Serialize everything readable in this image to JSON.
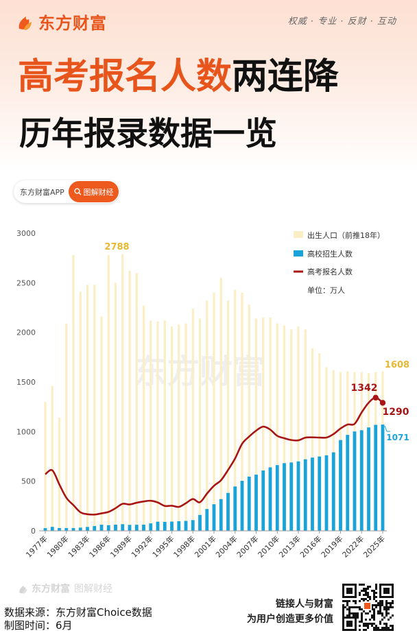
{
  "header": {
    "brand": "东方财富",
    "slogan": "权威 · 专业 · 反财 · 互动",
    "title_highlight": "高考报名人数",
    "title_rest": "两连降",
    "subtitle": "历年报录数据一览",
    "app_label": "东方财富APP",
    "app_button": "图解财经"
  },
  "watermark": "东方财富",
  "footer": {
    "brand": "东方财富",
    "brand_sub": "图解财经",
    "source": "数据来源：东方财富Choice数据",
    "date": "制图时间：6月",
    "slogan_line1": "链接人与财富",
    "slogan_line2": "为用户创造更多价值"
  },
  "colors": {
    "accent": "#e8551c",
    "births": "#fbeec4",
    "admissions": "#1aa3d8",
    "applicants": "#a81515",
    "births_label": "#e8b830"
  },
  "chart_data": {
    "type": "bar+line",
    "x": [
      1977,
      1978,
      1979,
      1980,
      1981,
      1982,
      1983,
      1984,
      1985,
      1986,
      1987,
      1988,
      1989,
      1990,
      1991,
      1992,
      1993,
      1994,
      1995,
      1996,
      1997,
      1998,
      1999,
      2000,
      2001,
      2002,
      2003,
      2004,
      2005,
      2006,
      2007,
      2008,
      2009,
      2010,
      2011,
      2012,
      2013,
      2014,
      2015,
      2016,
      2017,
      2018,
      2019,
      2020,
      2021,
      2022,
      2023,
      2024,
      2025
    ],
    "xticks": [
      "1977年",
      "1980年",
      "1983年",
      "1986年",
      "1989年",
      "1992年",
      "1995年",
      "1998年",
      "2001年",
      "2004年",
      "2007年",
      "2010年",
      "2013年",
      "2016年",
      "2019年",
      "2022年",
      "2025年"
    ],
    "ylim": [
      0,
      3000
    ],
    "yticks": [
      0,
      500,
      1000,
      1500,
      2000,
      2500,
      3000
    ],
    "series": [
      {
        "name": "出生人口（前推18年）",
        "kind": "bar",
        "values": [
          1300,
          1460,
          1140,
          2090,
          2780,
          2410,
          2480,
          2480,
          2160,
          2780,
          2500,
          2790,
          2620,
          2600,
          2270,
          2120,
          2110,
          2120,
          2060,
          2080,
          2090,
          2240,
          2140,
          2320,
          2400,
          2550,
          2320,
          2430,
          2400,
          2280,
          2140,
          2150,
          2150,
          2090,
          2070,
          2030,
          2060,
          2030,
          1840,
          1790,
          1650,
          1620,
          1600,
          1610,
          1600,
          1600,
          1590,
          1600,
          1608
        ]
      },
      {
        "name": "高校招生人数",
        "kind": "bar",
        "values": [
          27,
          40,
          28,
          28,
          28,
          32,
          39,
          48,
          62,
          57,
          62,
          67,
          60,
          61,
          62,
          75,
          92,
          90,
          93,
          97,
          100,
          108,
          160,
          220,
          268,
          320,
          382,
          447,
          504,
          546,
          566,
          608,
          640,
          662,
          682,
          689,
          700,
          721,
          738,
          749,
          761,
          791,
          915,
          967,
          1001,
          1014,
          1042,
          1068,
          1071
        ]
      },
      {
        "name": "高考报名人数",
        "kind": "line",
        "values": [
          570,
          610,
          468,
          333,
          259,
          187,
          167,
          164,
          176,
          191,
          228,
          272,
          266,
          283,
          296,
          303,
          286,
          251,
          253,
          241,
          278,
          320,
          288,
          375,
          454,
          510,
          613,
          729,
          877,
          950,
          1010,
          1050,
          1020,
          957,
          933,
          915,
          912,
          939,
          942,
          940,
          940,
          975,
          1031,
          1071,
          1078,
          1193,
          1291,
          1342,
          1290
        ]
      }
    ],
    "annotations": [
      {
        "text": "2788",
        "series": "出生人口（前推18年）"
      },
      {
        "text": "1608",
        "series": "出生人口（前推18年）"
      },
      {
        "text": "1342",
        "series": "高考报名人数"
      },
      {
        "text": "1290",
        "series": "高考报名人数"
      },
      {
        "text": "1071",
        "series": "高校招生人数"
      }
    ],
    "unit": "单位：万人",
    "legend_position": "top-right",
    "grid": false
  }
}
